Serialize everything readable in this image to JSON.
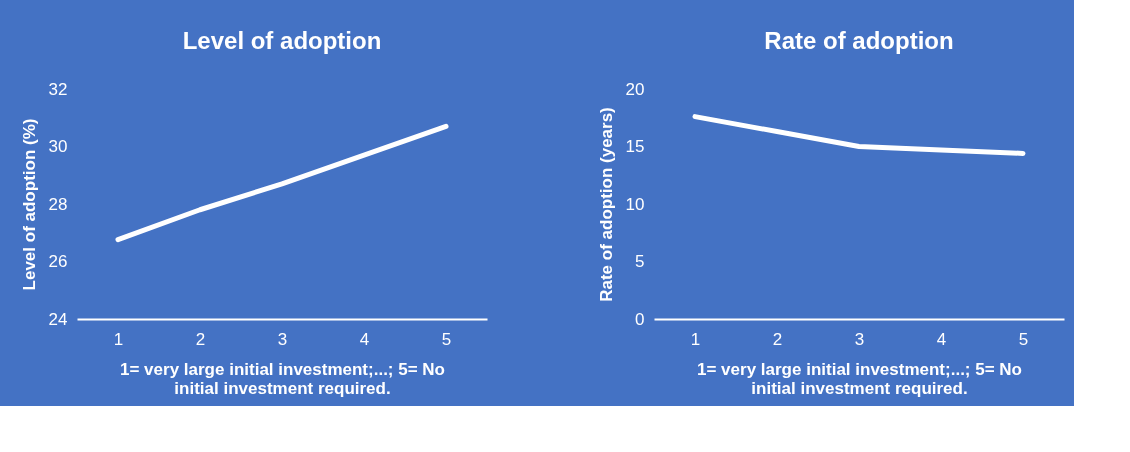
{
  "chart_data": [
    {
      "type": "line",
      "title": "Level of adoption",
      "xlabel": "1= very large initial investment;...; 5= No initial investment required.",
      "ylabel": "Level of adoption (%)",
      "categories": [
        "1",
        "2",
        "3",
        "4",
        "5"
      ],
      "series": [
        {
          "color": "#ffffff",
          "values": [
            26.76,
            27.8,
            28.7,
            29.7,
            30.7
          ]
        }
      ],
      "ylim": [
        24,
        32
      ],
      "yticks": [
        24,
        26,
        28,
        30,
        32
      ],
      "grid": false,
      "marker": "none",
      "line_style": "solid"
    },
    {
      "type": "line",
      "title": "Rate of adoption",
      "xlabel": "1= very large initial investment;...; 5= No initial investment required.",
      "ylabel": "Rate of adoption (years)",
      "categories": [
        "1",
        "2",
        "3",
        "4",
        "5"
      ],
      "series": [
        {
          "color": "#ffffff",
          "values": [
            17.6,
            16.3,
            15.0,
            14.7,
            14.4
          ]
        }
      ],
      "ylim": [
        0,
        20
      ],
      "yticks": [
        0,
        5,
        10,
        15,
        20
      ],
      "grid": false,
      "marker": "none",
      "line_style": "solid"
    }
  ]
}
